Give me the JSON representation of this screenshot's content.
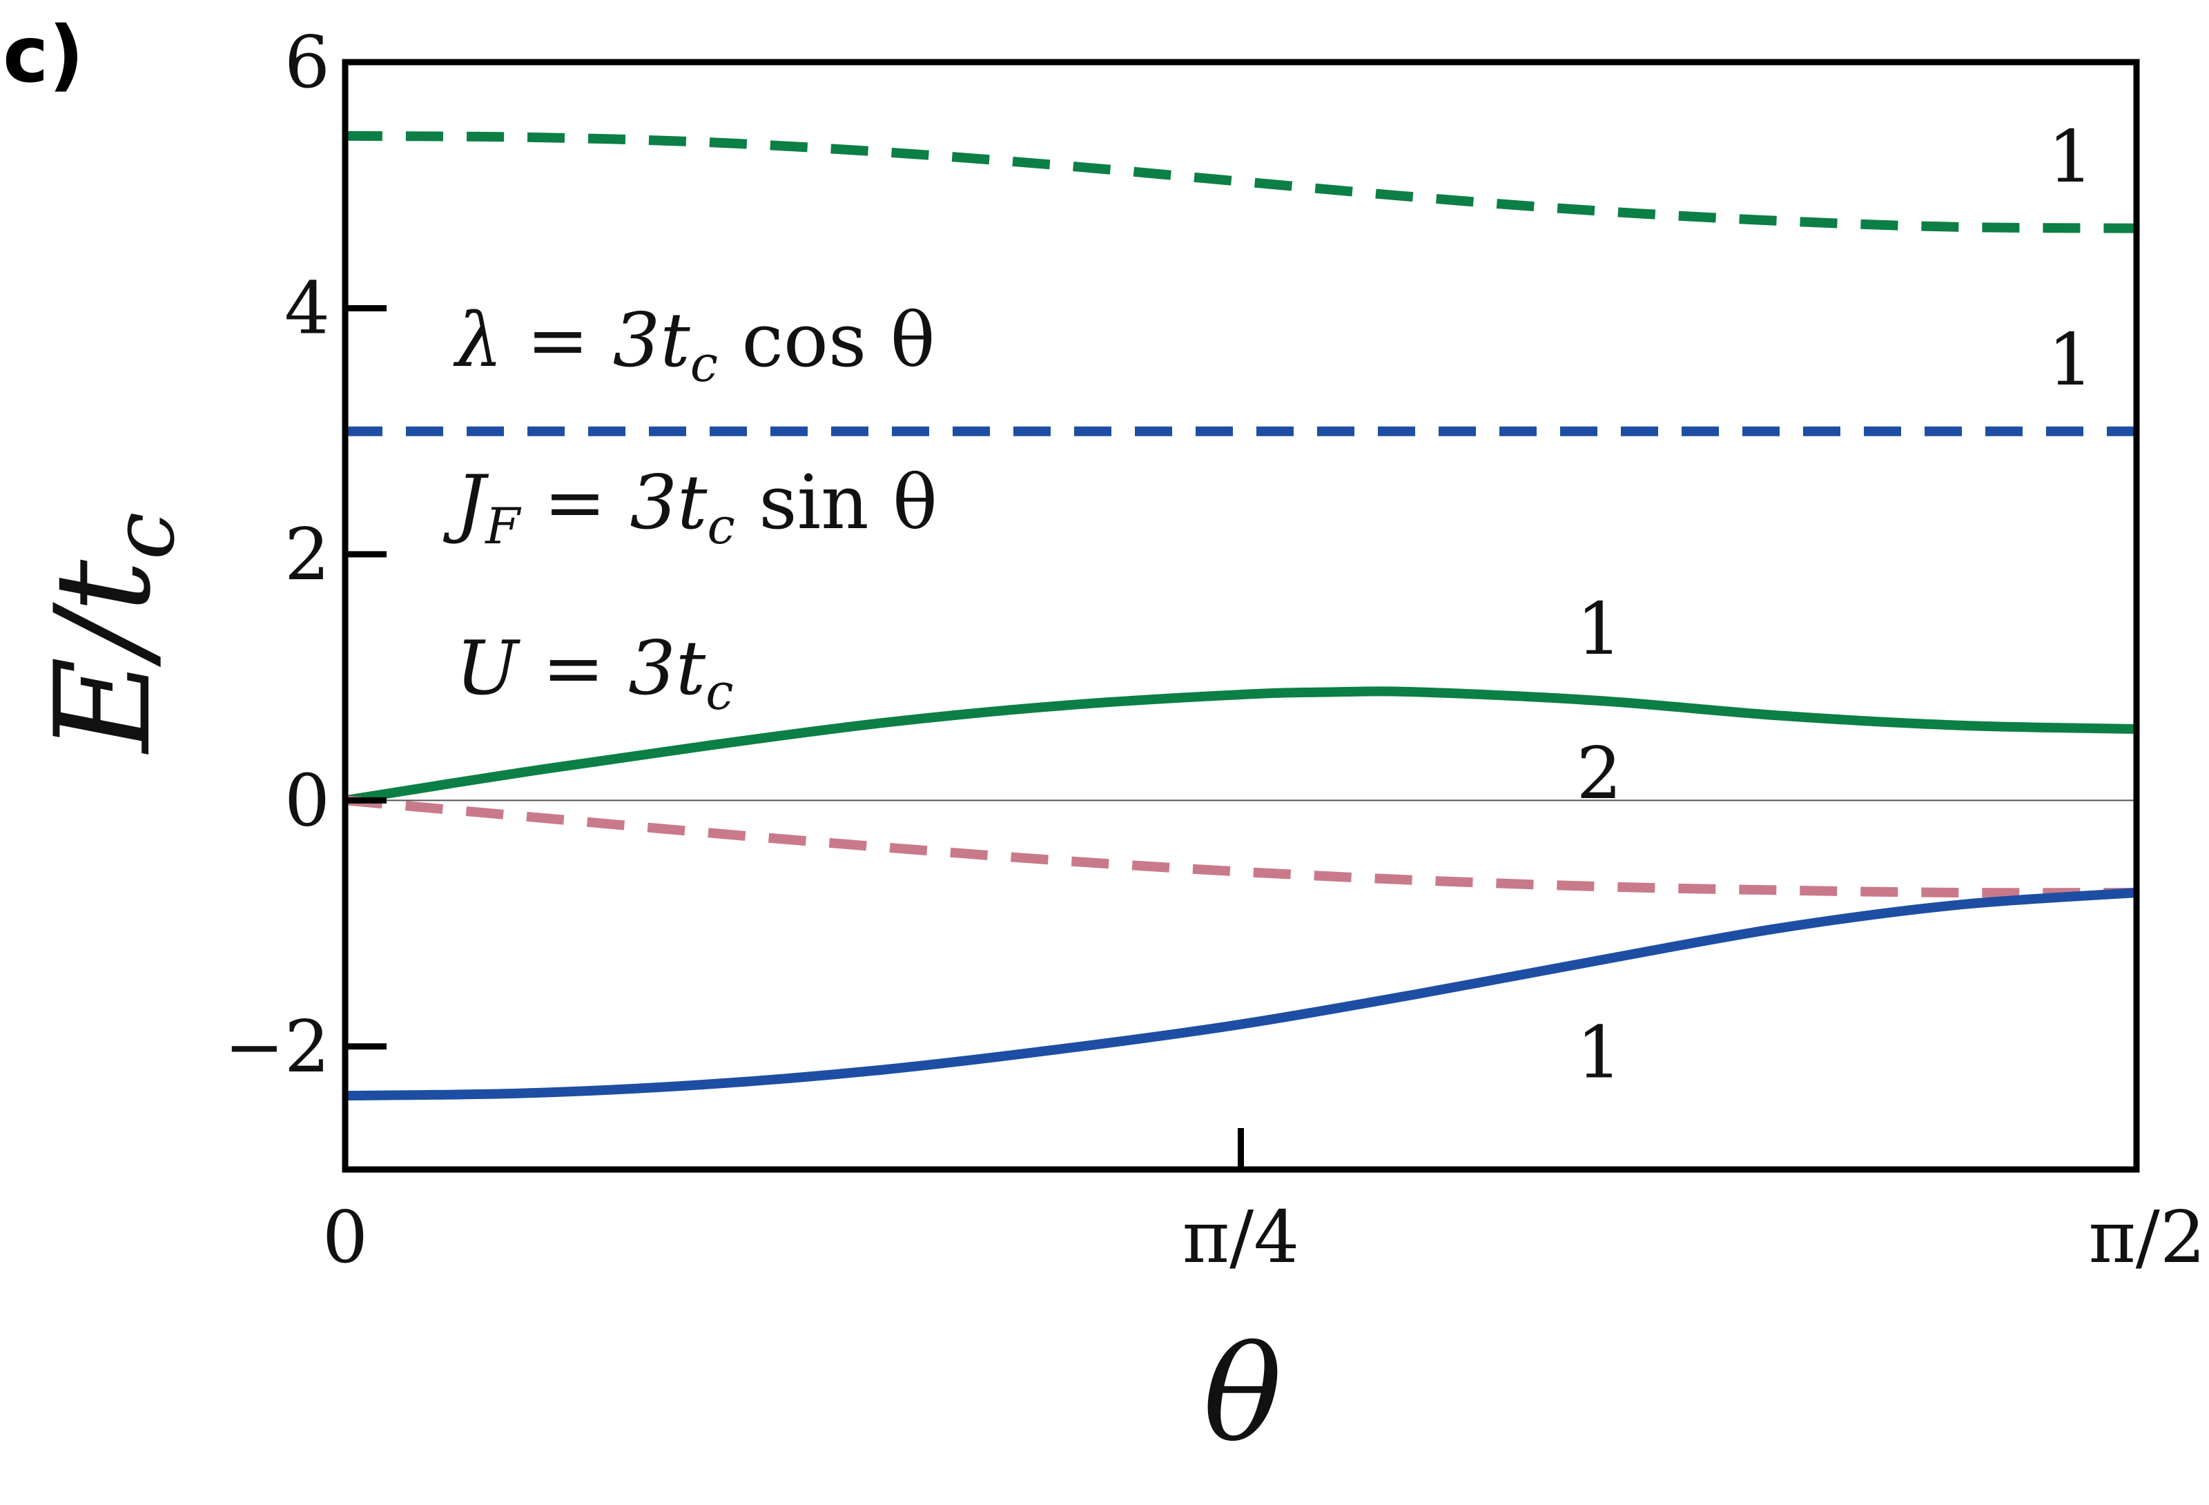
{
  "panel_label": "c)",
  "chart_data": {
    "type": "line",
    "xlabel": "θ",
    "ylabel": "E/t",
    "ylabel_sub": "c",
    "xlim": [
      0,
      1.5708
    ],
    "ylim": [
      -3,
      6
    ],
    "xticks": [
      {
        "value": 0,
        "label": "0"
      },
      {
        "value": 0.7854,
        "label": "π/4"
      },
      {
        "value": 1.5708,
        "label": "π/2"
      }
    ],
    "yticks": [
      {
        "value": -2,
        "label": "−2"
      },
      {
        "value": 0,
        "label": "0"
      },
      {
        "value": 2,
        "label": "2"
      },
      {
        "value": 4,
        "label": "4"
      },
      {
        "value": 6,
        "label": "6"
      }
    ],
    "zero_line": true,
    "annotations": {
      "lambda": {
        "main": "λ = 3t",
        "sub": "c",
        "tail": " cos θ"
      },
      "jf": {
        "head": "J",
        "headsub": "F",
        "main": " = 3t",
        "sub": "c",
        "tail": " sin θ"
      },
      "u": {
        "main": "U = 3t",
        "sub": "c"
      }
    },
    "series": [
      {
        "style": "dashed",
        "color": "#0b7f45",
        "degeneracy": "1",
        "x": [
          0,
          0.1571,
          0.3142,
          0.4712,
          0.6283,
          0.7854,
          0.9425,
          1.0996,
          1.2566,
          1.4137,
          1.5708
        ],
        "y": [
          5.4,
          5.39,
          5.35,
          5.27,
          5.16,
          5.03,
          4.9,
          4.79,
          4.71,
          4.66,
          4.65
        ]
      },
      {
        "style": "dashed",
        "color": "#1d4ea3",
        "degeneracy": "1",
        "x": [
          0,
          1.5708
        ],
        "y": [
          3.0,
          3.0
        ]
      },
      {
        "style": "solid",
        "color": "#0b7f45",
        "degeneracy": "1",
        "x": [
          0,
          0.1571,
          0.3142,
          0.4712,
          0.6283,
          0.7854,
          0.8639,
          0.9425,
          1.0996,
          1.2566,
          1.4137,
          1.5708
        ],
        "y": [
          0.0,
          0.23,
          0.44,
          0.63,
          0.77,
          0.86,
          0.88,
          0.88,
          0.81,
          0.69,
          0.61,
          0.58
        ]
      },
      {
        "style": "dashed",
        "color": "#c97a8a",
        "degeneracy": "2",
        "x": [
          0,
          0.1571,
          0.3142,
          0.4712,
          0.6283,
          0.7854,
          0.9425,
          1.0996,
          1.2566,
          1.4137,
          1.5708
        ],
        "y": [
          0.0,
          -0.13,
          -0.26,
          -0.38,
          -0.49,
          -0.58,
          -0.65,
          -0.7,
          -0.73,
          -0.75,
          -0.75
        ]
      },
      {
        "style": "solid",
        "color": "#1d4ea3",
        "degeneracy": "1",
        "x": [
          0,
          0.1571,
          0.3142,
          0.4712,
          0.6283,
          0.7854,
          0.9425,
          1.0996,
          1.2566,
          1.4137,
          1.5708
        ],
        "y": [
          -2.4,
          -2.38,
          -2.31,
          -2.19,
          -2.02,
          -1.82,
          -1.57,
          -1.3,
          -1.04,
          -0.85,
          -0.75
        ]
      }
    ]
  }
}
